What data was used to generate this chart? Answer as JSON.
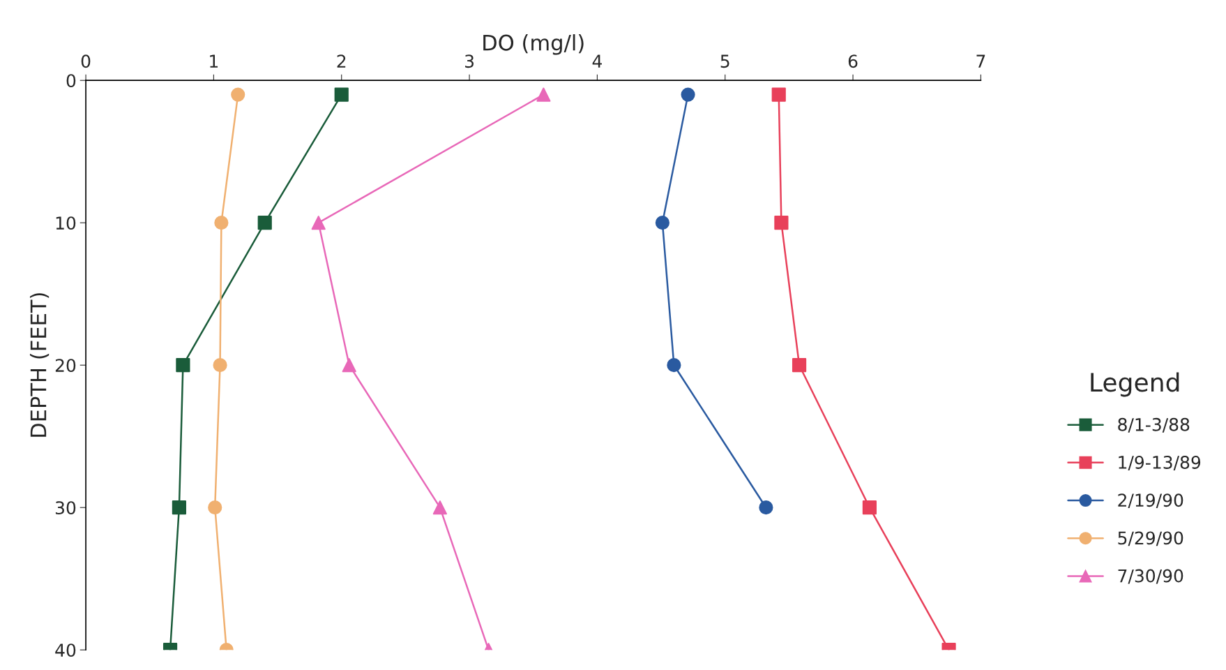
{
  "chart_data": {
    "type": "line",
    "xlabel": "DO (mg/l)",
    "ylabel": "DEPTH (FEET)",
    "legend_title": "Legend",
    "legend": "right",
    "grid": false,
    "xlim": [
      0,
      7
    ],
    "xticks": [
      0,
      1,
      2,
      3,
      4,
      5,
      6,
      7
    ],
    "ylim": [
      40,
      0
    ],
    "yticks": [
      0,
      10,
      20,
      30,
      40
    ],
    "series": [
      {
        "name": "8/1-3/88",
        "color": "#1a5c3a",
        "marker": "square",
        "x": [
          2.0,
          1.4,
          0.76,
          0.73,
          0.66
        ],
        "values": [
          1,
          10,
          20,
          30,
          40
        ]
      },
      {
        "name": "1/9-13/89",
        "color": "#e8405a",
        "marker": "square",
        "x": [
          5.42,
          5.44,
          5.58,
          6.13,
          6.75
        ],
        "values": [
          1,
          10,
          20,
          30,
          40
        ]
      },
      {
        "name": "2/19/90",
        "color": "#2a5aa0",
        "marker": "circle",
        "x": [
          4.71,
          4.51,
          4.6,
          5.32
        ],
        "values": [
          1,
          10,
          20,
          30
        ]
      },
      {
        "name": "5/29/90",
        "color": "#f0b070",
        "marker": "circle",
        "x": [
          1.19,
          1.06,
          1.05,
          1.01,
          1.1
        ],
        "values": [
          1,
          10,
          20,
          30,
          40
        ]
      },
      {
        "name": "7/30/90",
        "color": "#e868b8",
        "marker": "triangle",
        "x": [
          3.58,
          1.82,
          2.06,
          2.77,
          3.15
        ],
        "values": [
          1,
          10,
          20,
          30,
          40
        ]
      }
    ]
  }
}
